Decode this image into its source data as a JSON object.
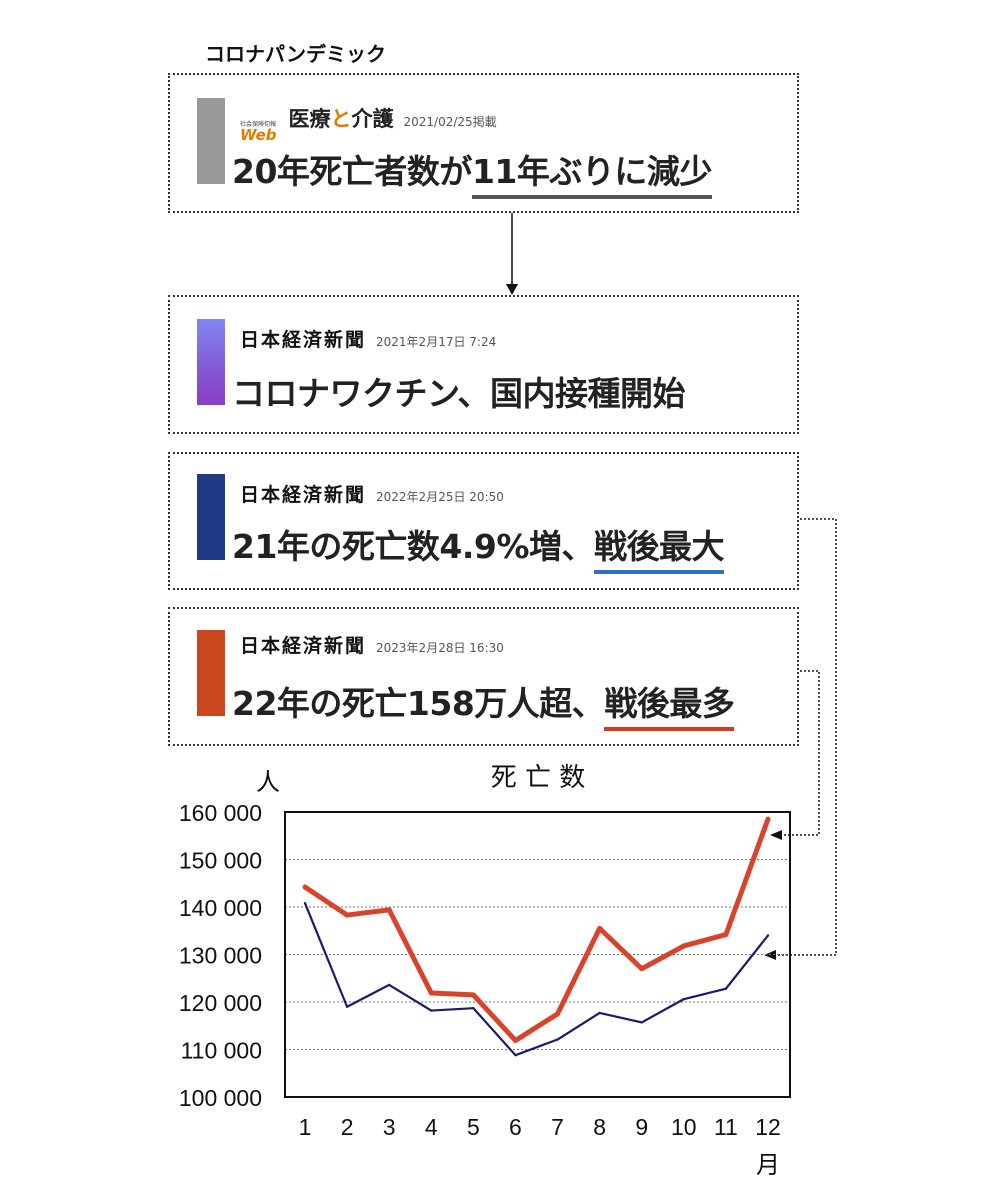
{
  "page_title": "コロナパンデミック",
  "cards": [
    {
      "source_small": "社会保険旬報",
      "source_web": "Web",
      "source_name_a": "医療",
      "source_name_to": "と",
      "source_name_b": "介護",
      "date": "2021/02/25掲載",
      "headline_plain": "20年死亡者数が",
      "headline_highlight": "11年ぶりに減少",
      "bar_color": "#999999",
      "underline_color": "#555555"
    },
    {
      "source": "日本経済新聞",
      "date": "2021年2月17日 7:24",
      "headline_plain": "コロナワクチン、国内接種開始",
      "headline_highlight": "",
      "bar_color_top": "#7f86f2",
      "bar_color_bottom": "#8a3bc4"
    },
    {
      "source": "日本経済新聞",
      "date": "2022年2月25日 20:50",
      "headline_plain": "21年の死亡数4.9%増、",
      "headline_highlight": "戦後最大",
      "bar_color": "#1f3a84",
      "underline_color": "#2f6fc0"
    },
    {
      "source": "日本経済新聞",
      "date": "2023年2月28日 16:30",
      "headline_plain": "22年の死亡158万人超、",
      "headline_highlight": "戦後最多",
      "bar_color": "#c9461f",
      "underline_color": "#d23a22"
    }
  ],
  "chart_data": {
    "type": "line",
    "title": "死 亡 数",
    "ylabel": "人",
    "xlabel": "月",
    "x": [
      1,
      2,
      3,
      4,
      5,
      6,
      7,
      8,
      9,
      10,
      11,
      12
    ],
    "x_tick_labels": [
      "1",
      "2",
      "3",
      "4",
      "5",
      "6",
      "7",
      "8",
      "9",
      "10",
      "11",
      "12"
    ],
    "ylim": [
      100000,
      160000
    ],
    "y_ticks": [
      100000,
      110000,
      120000,
      130000,
      140000,
      150000,
      160000
    ],
    "y_tick_labels": [
      "100 000",
      "110 000",
      "120 000",
      "130 000",
      "140 000",
      "150 000",
      "160 000"
    ],
    "grid": "horizontal",
    "series": [
      {
        "values": [
          140800,
          119000,
          123600,
          118200,
          118700,
          108800,
          112100,
          117700,
          115700,
          120600,
          122800,
          134000
        ],
        "color": "#1a1a6e"
      },
      {
        "values": [
          144200,
          138300,
          139400,
          121900,
          121500,
          111900,
          117500,
          135500,
          127000,
          131800,
          134200,
          158500
        ],
        "color": "#d9432b"
      }
    ]
  }
}
